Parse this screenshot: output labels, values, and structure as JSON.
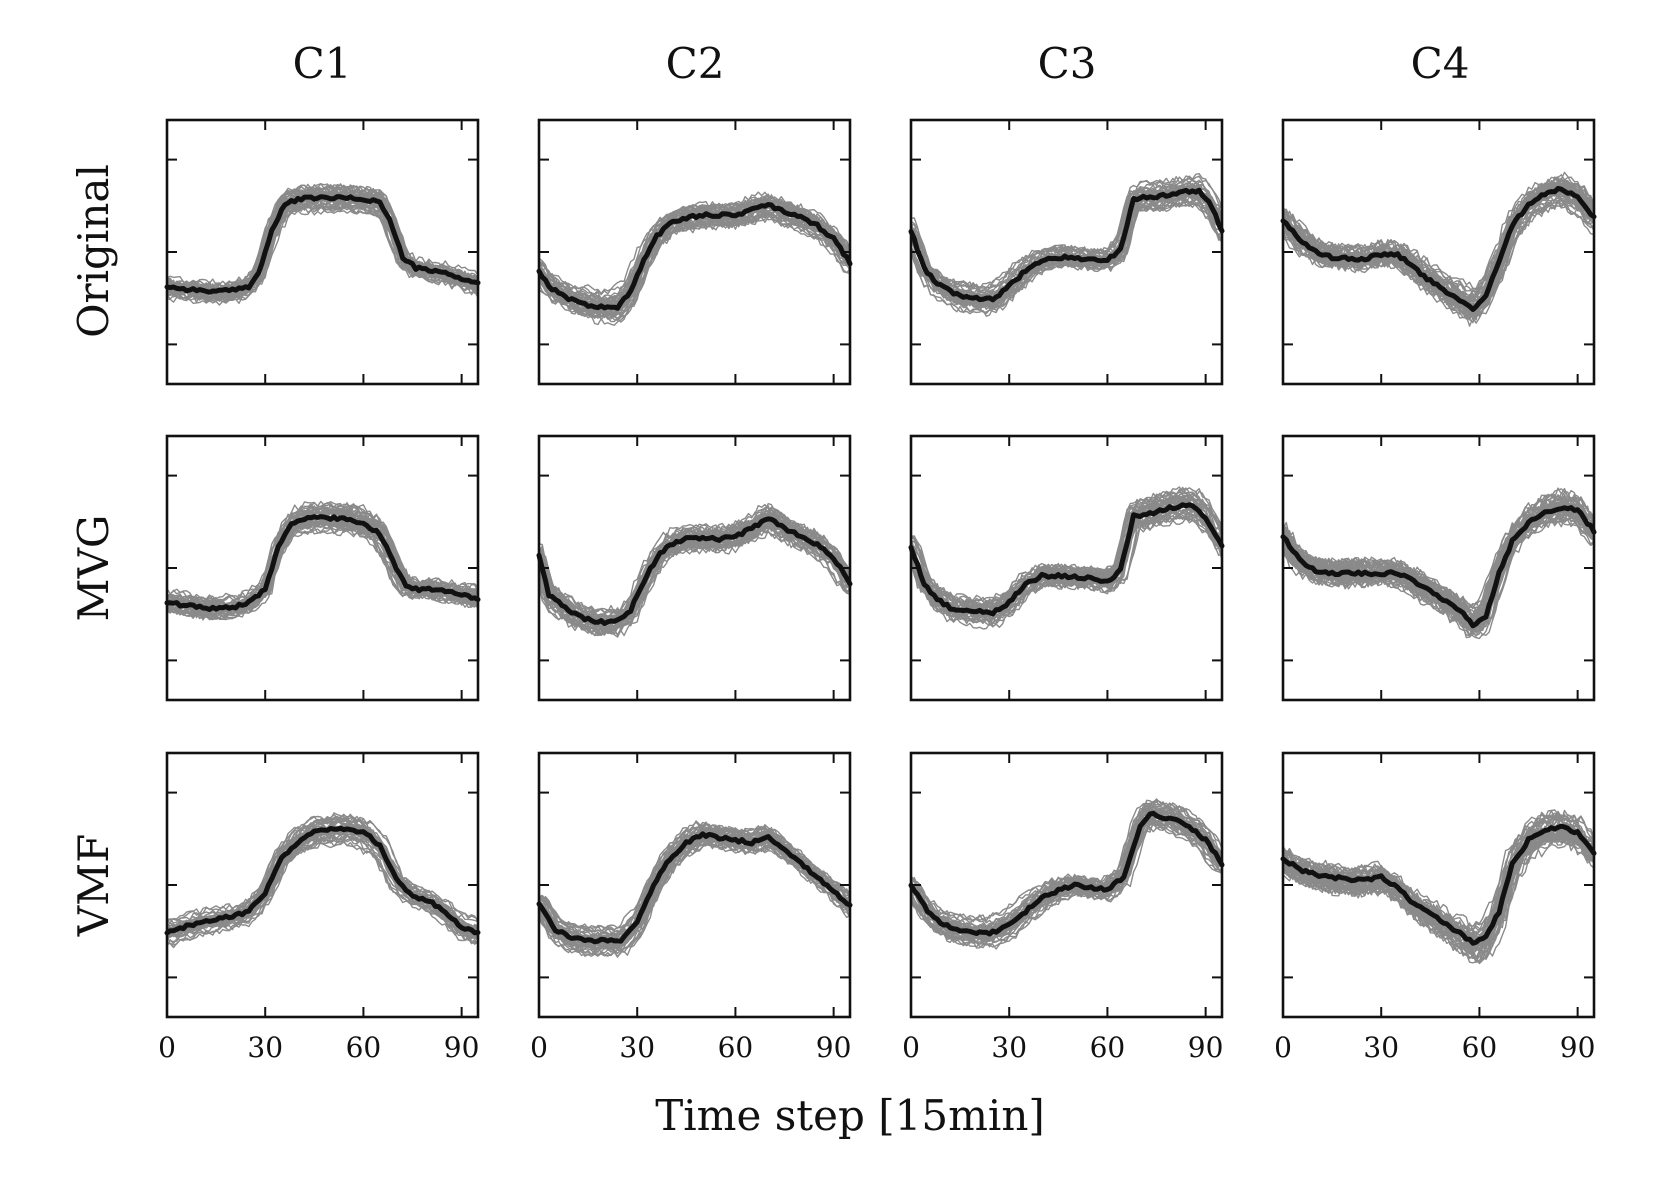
{
  "chart_data": {
    "type": "line",
    "layout": "grid",
    "columns": [
      "C1",
      "C2",
      "C3",
      "C4"
    ],
    "rows": [
      "Original",
      "MVG",
      "VMF"
    ],
    "xlabel": "Time step [15min]",
    "xticks": [
      0,
      30,
      60,
      90
    ],
    "xlim": [
      0,
      95
    ],
    "ylim": [
      0,
      1
    ],
    "yticks_unlabeled": [
      0.15,
      0.5,
      0.85
    ],
    "colors": {
      "samples": "#8a8a8a",
      "mean": "#111111"
    },
    "panels": [
      {
        "row": "Original",
        "column": "C1",
        "samples": 40,
        "noise": 0.028,
        "mean": {
          "x": [
            0,
            5,
            10,
            15,
            20,
            25,
            28,
            32,
            36,
            40,
            45,
            50,
            55,
            60,
            65,
            68,
            72,
            76,
            80,
            85,
            90,
            95
          ],
          "y": [
            0.37,
            0.36,
            0.355,
            0.35,
            0.355,
            0.37,
            0.42,
            0.58,
            0.68,
            0.7,
            0.705,
            0.705,
            0.705,
            0.7,
            0.69,
            0.62,
            0.48,
            0.44,
            0.43,
            0.42,
            0.4,
            0.38
          ]
        }
      },
      {
        "row": "Original",
        "column": "C2",
        "samples": 40,
        "noise": 0.032,
        "mean": {
          "x": [
            0,
            3,
            8,
            12,
            16,
            20,
            24,
            28,
            32,
            36,
            40,
            45,
            50,
            55,
            60,
            65,
            70,
            75,
            80,
            85,
            90,
            95
          ],
          "y": [
            0.43,
            0.37,
            0.33,
            0.31,
            0.295,
            0.29,
            0.29,
            0.35,
            0.47,
            0.56,
            0.61,
            0.63,
            0.64,
            0.64,
            0.64,
            0.66,
            0.68,
            0.65,
            0.63,
            0.6,
            0.55,
            0.46
          ]
        }
      },
      {
        "row": "Original",
        "column": "C3",
        "samples": 40,
        "noise": 0.03,
        "mean": {
          "x": [
            0,
            4,
            8,
            12,
            16,
            20,
            25,
            30,
            35,
            40,
            45,
            50,
            55,
            60,
            64,
            68,
            72,
            76,
            80,
            84,
            88,
            92,
            95
          ],
          "y": [
            0.58,
            0.44,
            0.38,
            0.35,
            0.33,
            0.325,
            0.32,
            0.37,
            0.43,
            0.47,
            0.48,
            0.48,
            0.47,
            0.47,
            0.51,
            0.7,
            0.71,
            0.71,
            0.72,
            0.73,
            0.73,
            0.67,
            0.58
          ]
        }
      },
      {
        "row": "Original",
        "column": "C4",
        "samples": 45,
        "noise": 0.038,
        "mean": {
          "x": [
            0,
            5,
            10,
            15,
            20,
            25,
            30,
            35,
            40,
            45,
            50,
            55,
            58,
            62,
            66,
            70,
            75,
            80,
            85,
            90,
            95
          ],
          "y": [
            0.62,
            0.55,
            0.5,
            0.48,
            0.475,
            0.475,
            0.49,
            0.49,
            0.44,
            0.39,
            0.35,
            0.31,
            0.28,
            0.34,
            0.46,
            0.6,
            0.68,
            0.72,
            0.74,
            0.71,
            0.63
          ]
        }
      },
      {
        "row": "MVG",
        "column": "C1",
        "samples": 40,
        "noise": 0.03,
        "mean": {
          "x": [
            0,
            5,
            10,
            15,
            20,
            25,
            30,
            34,
            38,
            42,
            46,
            50,
            55,
            60,
            65,
            70,
            73,
            77,
            81,
            85,
            90,
            95
          ],
          "y": [
            0.37,
            0.36,
            0.35,
            0.345,
            0.35,
            0.37,
            0.42,
            0.58,
            0.67,
            0.685,
            0.69,
            0.69,
            0.685,
            0.67,
            0.63,
            0.5,
            0.43,
            0.42,
            0.42,
            0.41,
            0.4,
            0.385
          ]
        }
      },
      {
        "row": "MVG",
        "column": "C2",
        "samples": 40,
        "noise": 0.034,
        "mean": {
          "x": [
            0,
            3,
            8,
            12,
            16,
            20,
            24,
            28,
            32,
            36,
            40,
            45,
            50,
            55,
            60,
            65,
            70,
            75,
            80,
            85,
            90,
            95
          ],
          "y": [
            0.55,
            0.4,
            0.35,
            0.32,
            0.3,
            0.295,
            0.3,
            0.34,
            0.45,
            0.54,
            0.59,
            0.61,
            0.61,
            0.61,
            0.62,
            0.65,
            0.69,
            0.65,
            0.62,
            0.59,
            0.54,
            0.44
          ]
        }
      },
      {
        "row": "MVG",
        "column": "C3",
        "samples": 40,
        "noise": 0.032,
        "mean": {
          "x": [
            0,
            4,
            8,
            12,
            16,
            20,
            25,
            30,
            35,
            40,
            45,
            50,
            55,
            60,
            64,
            68,
            72,
            76,
            80,
            84,
            88,
            92,
            95
          ],
          "y": [
            0.58,
            0.44,
            0.38,
            0.35,
            0.34,
            0.335,
            0.33,
            0.37,
            0.44,
            0.47,
            0.47,
            0.465,
            0.46,
            0.45,
            0.49,
            0.7,
            0.7,
            0.72,
            0.73,
            0.74,
            0.72,
            0.65,
            0.58
          ]
        }
      },
      {
        "row": "MVG",
        "column": "C4",
        "samples": 45,
        "noise": 0.04,
        "mean": {
          "x": [
            0,
            5,
            10,
            15,
            20,
            25,
            30,
            35,
            40,
            45,
            50,
            55,
            58,
            62,
            66,
            70,
            75,
            80,
            85,
            90,
            95
          ],
          "y": [
            0.62,
            0.53,
            0.49,
            0.48,
            0.48,
            0.48,
            0.48,
            0.48,
            0.45,
            0.41,
            0.37,
            0.33,
            0.28,
            0.32,
            0.48,
            0.6,
            0.67,
            0.71,
            0.73,
            0.72,
            0.64
          ]
        }
      },
      {
        "row": "VMF",
        "column": "C1",
        "samples": 40,
        "noise": 0.026,
        "mean": {
          "x": [
            0,
            5,
            10,
            15,
            20,
            25,
            30,
            35,
            40,
            45,
            50,
            55,
            60,
            65,
            70,
            75,
            80,
            85,
            90,
            95
          ],
          "y": [
            0.32,
            0.34,
            0.36,
            0.37,
            0.38,
            0.4,
            0.47,
            0.6,
            0.66,
            0.7,
            0.71,
            0.715,
            0.7,
            0.65,
            0.52,
            0.46,
            0.44,
            0.4,
            0.34,
            0.32
          ]
        }
      },
      {
        "row": "VMF",
        "column": "C2",
        "samples": 40,
        "noise": 0.026,
        "mean": {
          "x": [
            0,
            5,
            10,
            15,
            20,
            25,
            30,
            35,
            40,
            45,
            50,
            55,
            60,
            65,
            70,
            75,
            80,
            85,
            90,
            95
          ],
          "y": [
            0.43,
            0.33,
            0.3,
            0.29,
            0.29,
            0.29,
            0.36,
            0.5,
            0.6,
            0.66,
            0.69,
            0.68,
            0.67,
            0.66,
            0.68,
            0.63,
            0.58,
            0.53,
            0.48,
            0.42
          ]
        }
      },
      {
        "row": "VMF",
        "column": "C3",
        "samples": 40,
        "noise": 0.03,
        "mean": {
          "x": [
            0,
            5,
            10,
            15,
            20,
            25,
            30,
            35,
            40,
            45,
            50,
            55,
            60,
            65,
            70,
            73,
            76,
            80,
            85,
            90,
            95
          ],
          "y": [
            0.5,
            0.4,
            0.35,
            0.33,
            0.32,
            0.32,
            0.35,
            0.4,
            0.45,
            0.48,
            0.5,
            0.49,
            0.48,
            0.53,
            0.72,
            0.77,
            0.76,
            0.75,
            0.72,
            0.67,
            0.58
          ]
        }
      },
      {
        "row": "VMF",
        "column": "C4",
        "samples": 45,
        "noise": 0.045,
        "mean": {
          "x": [
            0,
            5,
            10,
            15,
            20,
            25,
            30,
            35,
            40,
            45,
            50,
            55,
            58,
            62,
            66,
            70,
            75,
            80,
            85,
            90,
            95
          ],
          "y": [
            0.6,
            0.56,
            0.54,
            0.53,
            0.52,
            0.52,
            0.53,
            0.49,
            0.43,
            0.39,
            0.35,
            0.31,
            0.28,
            0.3,
            0.4,
            0.58,
            0.67,
            0.71,
            0.72,
            0.7,
            0.62
          ]
        }
      }
    ]
  }
}
